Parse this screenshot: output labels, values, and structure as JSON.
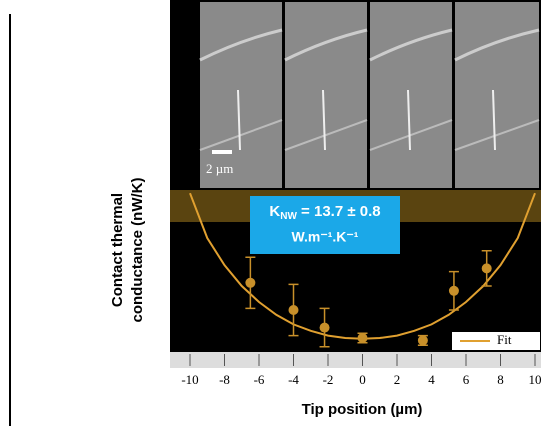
{
  "chart_data": {
    "type": "scatter",
    "ylabel_lines": [
      "Contact thermal",
      "conductance (nW/K)"
    ],
    "xlabel": "Tip position (µm)",
    "xlim": [
      -10,
      10
    ],
    "xticks": [
      -10,
      -8,
      -6,
      -4,
      -2,
      0,
      2,
      4,
      6,
      8,
      10
    ],
    "ylim": [
      0,
      10
    ],
    "scale_bar": "2 µm",
    "annotation": {
      "symbol": "K",
      "subscript": "NW",
      "value": " = 13.7 ± 0.8",
      "units": "W.m⁻¹.K⁻¹"
    },
    "points": {
      "color": "#c8902a",
      "x": [
        -6.5,
        -4,
        -2.2,
        0,
        3.5,
        5.3,
        7.2
      ],
      "values": [
        4.2,
        2.5,
        1.4,
        0.75,
        0.6,
        3.7,
        5.1
      ],
      "errors": [
        1.6,
        1.6,
        1.2,
        0.3,
        0.3,
        1.2,
        1.1
      ]
    },
    "fit": {
      "name": "Fit",
      "color": "#e0a030",
      "x": [
        -10,
        -9,
        -8,
        -7,
        -6,
        -5,
        -4,
        -3,
        -2,
        -1,
        0,
        1,
        2,
        3,
        4,
        5,
        6,
        7,
        8,
        9,
        10
      ],
      "values": [
        9.8,
        7.0,
        5.3,
        4.0,
        3.0,
        2.2,
        1.6,
        1.2,
        0.9,
        0.75,
        0.7,
        0.75,
        0.9,
        1.2,
        1.6,
        2.2,
        3.0,
        4.0,
        5.3,
        7.0,
        9.8
      ]
    }
  }
}
